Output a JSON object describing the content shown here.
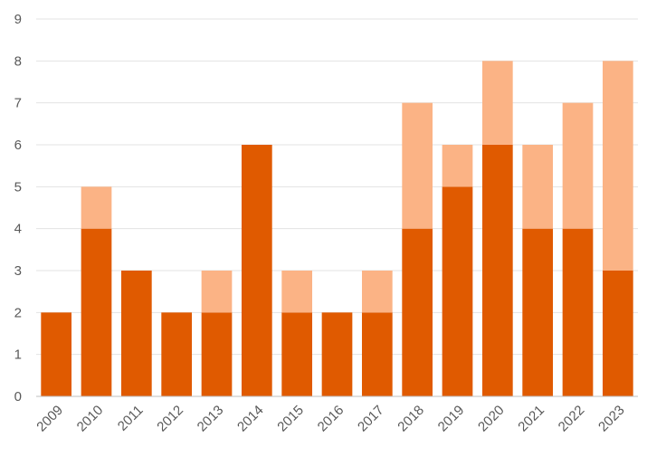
{
  "chart_data": {
    "type": "bar",
    "stacked": true,
    "title": "",
    "xlabel": "",
    "ylabel": "",
    "ylim": [
      0,
      9
    ],
    "yticks": [
      0,
      1,
      2,
      3,
      4,
      5,
      6,
      7,
      8,
      9
    ],
    "grid": true,
    "legend": "none",
    "categories": [
      "2009",
      "2010",
      "2011",
      "2012",
      "2013",
      "2014",
      "2015",
      "2016",
      "2017",
      "2018",
      "2019",
      "2020",
      "2021",
      "2022",
      "2023"
    ],
    "series": [
      {
        "color": "#e05a00",
        "values": [
          2,
          4,
          3,
          2,
          2,
          6,
          2,
          2,
          2,
          4,
          5,
          6,
          4,
          4,
          3
        ]
      },
      {
        "color": "#fbb385",
        "values": [
          0,
          1,
          0,
          0,
          1,
          0,
          1,
          0,
          1,
          3,
          1,
          2,
          2,
          3,
          5
        ]
      }
    ]
  }
}
